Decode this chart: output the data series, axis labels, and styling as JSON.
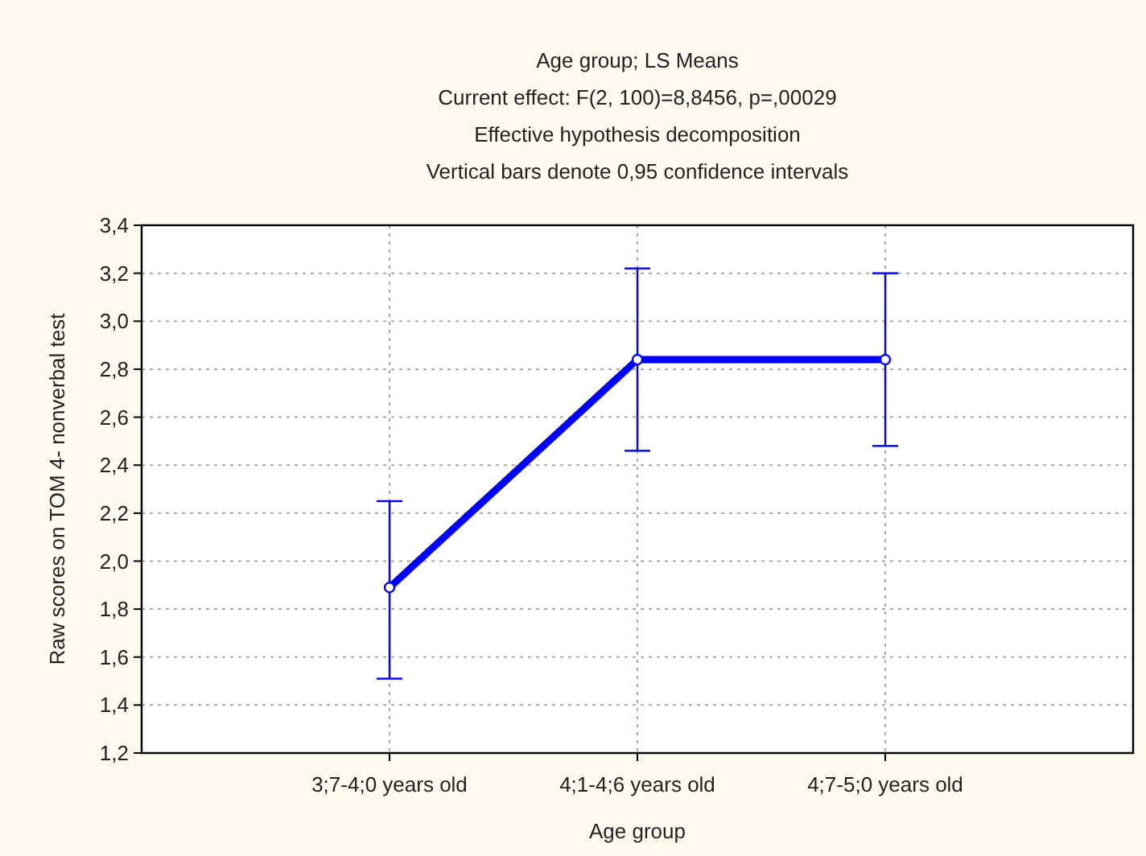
{
  "chart_data": {
    "type": "line",
    "title": "Age group; LS Means",
    "subtitle": "Current effect: F(2, 100)=8,8456, p=,00029",
    "annotations": [
      "Effective hypothesis decomposition",
      "Vertical bars denote 0,95 confidence intervals"
    ],
    "xlabel": "Age group",
    "ylabel": "Raw scores on TOM 4- nonverbal test",
    "categories": [
      "3;7-4;0 years old",
      "4;1-4;6 years old",
      "4;7-5;0 years old"
    ],
    "series": [
      {
        "color": "#0000ff",
        "values": [
          1.89,
          2.84,
          2.84
        ],
        "errors": [
          [
            1.51,
            2.25
          ],
          [
            2.46,
            3.22
          ],
          [
            2.48,
            3.2
          ]
        ]
      }
    ],
    "ylim": [
      1.2,
      3.4
    ],
    "yticks": [
      {
        "value": 1.2,
        "label": "1,2"
      },
      {
        "value": 1.4,
        "label": "1,4"
      },
      {
        "value": 1.6,
        "label": "1,6"
      },
      {
        "value": 1.8,
        "label": "1,8"
      },
      {
        "value": 2.0,
        "label": "2,0"
      },
      {
        "value": 2.2,
        "label": "2,2"
      },
      {
        "value": 2.4,
        "label": "2,4"
      },
      {
        "value": 2.6,
        "label": "2,6"
      },
      {
        "value": 2.8,
        "label": "2,8"
      },
      {
        "value": 3.0,
        "label": "3,0"
      },
      {
        "value": 3.2,
        "label": "3,2"
      },
      {
        "value": 3.4,
        "label": "3,4"
      }
    ],
    "grid": true,
    "marker": "circle",
    "line_style": "solid"
  }
}
